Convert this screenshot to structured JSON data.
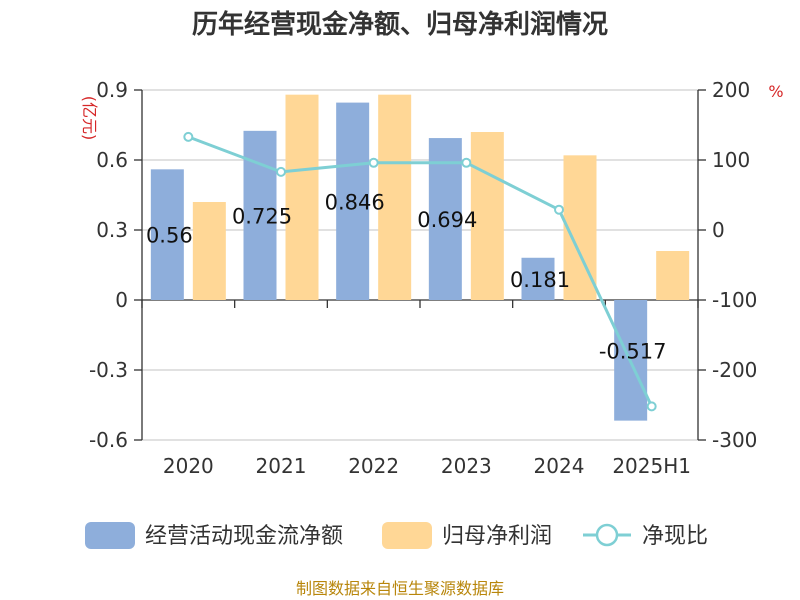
{
  "page": {
    "title": "历年经营现金净额、归母净利润情况",
    "source": "制图数据来自恒生聚源数据库"
  },
  "chart_data": {
    "type": "bar",
    "title": "历年经营现金净额、归母净利润情况",
    "categories": [
      "2020",
      "2021",
      "2022",
      "2023",
      "2024",
      "2025H1"
    ],
    "series": [
      {
        "name": "经营活动现金流净额",
        "type": "bar",
        "axis": "left",
        "color": "#8eaedb",
        "values": [
          0.56,
          0.725,
          0.846,
          0.694,
          0.181,
          -0.517
        ],
        "data_labels": [
          "0.56",
          "0.725",
          "0.846",
          "0.694",
          "0.181",
          "-0.517"
        ]
      },
      {
        "name": "归母净利润",
        "type": "bar",
        "axis": "left",
        "color": "#ffd796",
        "values": [
          0.42,
          0.88,
          0.88,
          0.72,
          0.62,
          0.21
        ]
      },
      {
        "name": "净现比",
        "type": "line",
        "axis": "right",
        "color": "#7ecfd4",
        "values": [
          133,
          83,
          96,
          96,
          29,
          -252
        ]
      }
    ],
    "y_left": {
      "unit_label": "(亿元)",
      "ticks": [
        "0.9",
        "0.6",
        "0.3",
        "0",
        "-0.3",
        "-0.6"
      ],
      "tick_values": [
        0.9,
        0.6,
        0.3,
        0,
        -0.3,
        -0.6
      ],
      "range": [
        -0.6,
        0.9
      ]
    },
    "y_right": {
      "unit_label": "%",
      "ticks": [
        "200",
        "100",
        "0",
        "-100",
        "-200",
        "-300"
      ],
      "tick_values": [
        200,
        100,
        0,
        -100,
        -200,
        -300
      ],
      "range": [
        -300,
        200
      ]
    },
    "grid": true,
    "legend_position": "bottom"
  }
}
